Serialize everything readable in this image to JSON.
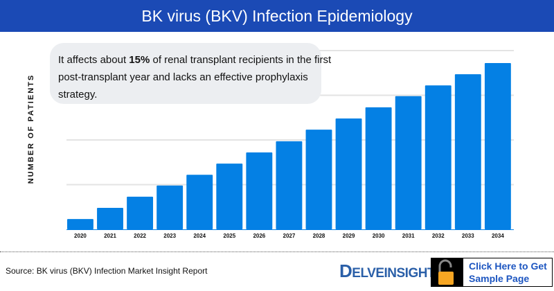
{
  "header": {
    "title": "BK virus (BKV) Infection Epidemiology"
  },
  "callout": {
    "text_before": "It affects about ",
    "text_bold": "15%",
    "text_line1_after": " of renal transplant recipients in the first",
    "text_line2": "post-transplant year and lacks an effective prophylaxis",
    "text_line3": "strategy."
  },
  "footer": {
    "source": "Source: BK virus (BKV) Infection Market Insight Report",
    "logo_text": "ELVEINSIGHT",
    "logo_letter": "D",
    "cta_line1": "Click Here to Get",
    "cta_line2": "Sample Page",
    "cta_icon": "unlocked-padlock-icon"
  },
  "colors": {
    "bar": "#0480e4",
    "header": "#1b4ab5",
    "callout_bg": "#eceef1",
    "lock": "#f6a623"
  },
  "chart_data": {
    "type": "bar",
    "title": "BK virus (BKV) Infection Epidemiology",
    "xlabel": "",
    "ylabel": "NUMBER OF PATIENTS",
    "categories": [
      "2020",
      "2021",
      "2022",
      "2023",
      "2024",
      "2025",
      "2026",
      "2027",
      "2028",
      "2029",
      "2030",
      "2031",
      "2032",
      "2033",
      "2034"
    ],
    "values": [
      0.23,
      0.48,
      0.73,
      0.98,
      1.22,
      1.47,
      1.72,
      1.97,
      2.23,
      2.48,
      2.73,
      2.98,
      3.22,
      3.47,
      3.72
    ],
    "ylim": [
      0,
      4
    ],
    "y_tick_labels_shown": false,
    "grid": true,
    "legend": "none"
  }
}
